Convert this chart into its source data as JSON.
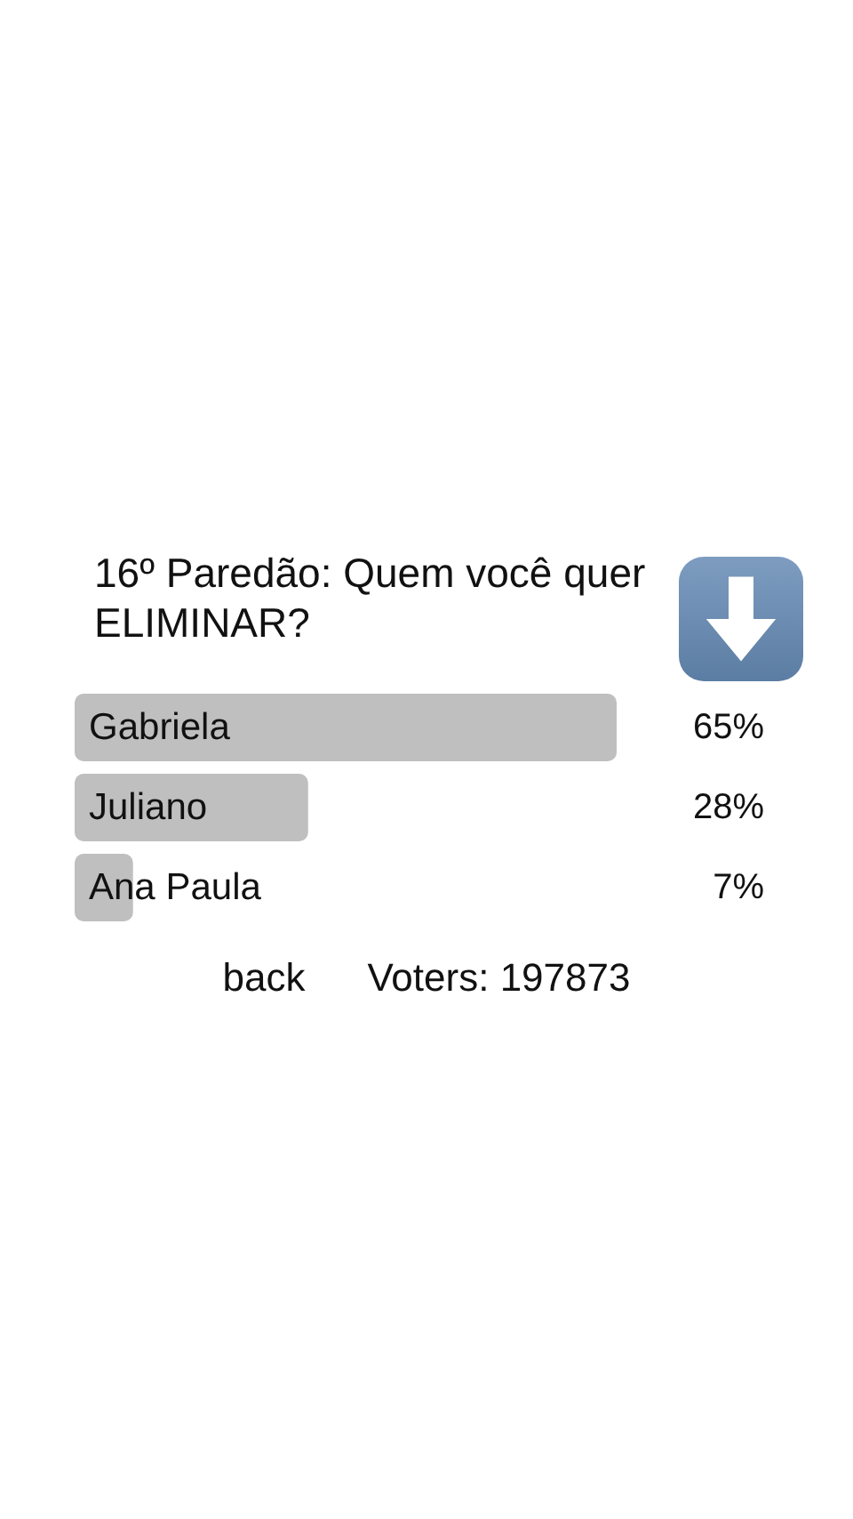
{
  "chart_data": {
    "type": "bar",
    "orientation": "horizontal",
    "title": "16º Paredão: Quem você quer ELIMINAR?",
    "categories": [
      "Gabriela",
      "Juliano",
      "Ana Paula"
    ],
    "values": [
      65,
      28,
      7
    ],
    "color": "#bfbfbf",
    "value_labels": [
      "65%",
      "28%",
      "7%"
    ],
    "annotations": [
      "back",
      "Voters: 197873"
    ]
  }
}
